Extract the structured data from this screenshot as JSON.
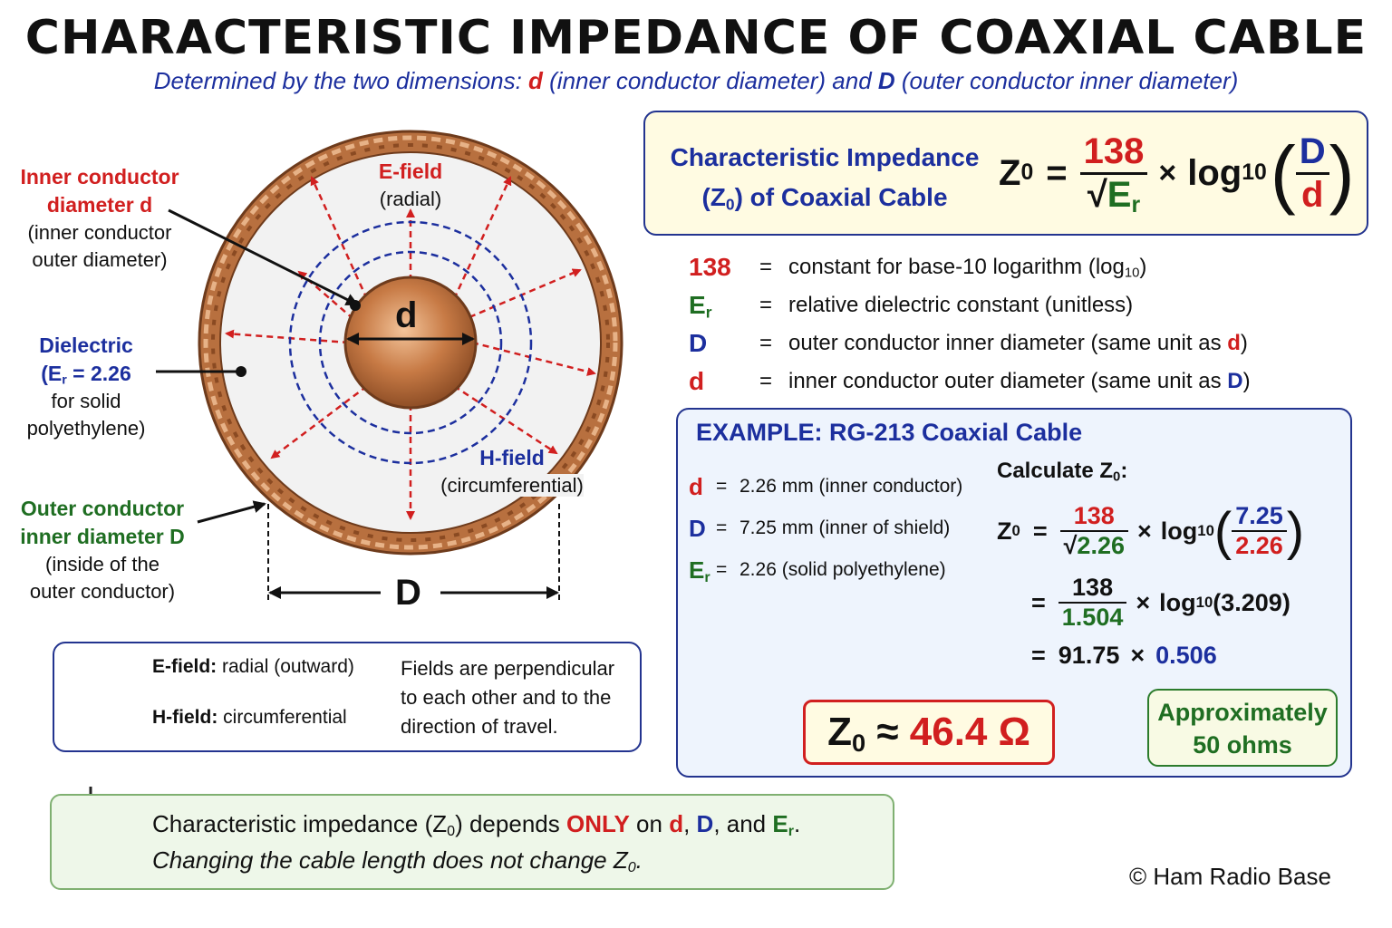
{
  "title": "CHARACTERISTIC IMPEDANCE OF COAXIAL CABLE",
  "subtitle": {
    "p1": "Determined by the two dimensions: ",
    "d": "d",
    "p2": " (inner conductor diameter) and ",
    "D": "D",
    "p3": " (outer conductor inner diameter)"
  },
  "diagram": {
    "inner_label_title_1": "Inner conductor",
    "inner_label_title_2": "diameter d",
    "inner_label_desc_1": "(inner conductor",
    "inner_label_desc_2": "outer diameter)",
    "dielectric_title": "Dielectric",
    "dielectric_er_pre": "(E",
    "dielectric_er_sub": "r",
    "dielectric_er_post": " = 2.26",
    "dielectric_desc_1": "for solid",
    "dielectric_desc_2": "polyethylene)",
    "outer_label_title_1": "Outer conductor",
    "outer_label_title_2": "inner diameter D",
    "outer_label_desc_1": "(inside of the",
    "outer_label_desc_2": "outer conductor)",
    "efield_title": "E-field",
    "efield_desc": "(radial)",
    "hfield_title": "H-field",
    "hfield_desc": "(circumferential)",
    "d_mark": "d",
    "D_mark": "D"
  },
  "formula": {
    "label_1": "Characteristic Impedance",
    "label_2a": "(Z",
    "label_2sub": "0",
    "label_2b": ") of Coaxial Cable",
    "z": "Z",
    "z_sub": "0",
    "equals": "=",
    "numerator": "138",
    "sqrt": "√",
    "er": "E",
    "er_sub": "r",
    "times": "×",
    "log": "log",
    "log_sub": "10",
    "frac_num": "D",
    "frac_den": "d"
  },
  "definitions": [
    {
      "sym": "138",
      "sub": "",
      "eq": "=",
      "text": "constant for base-10 logarithm (log",
      "text_sub": "10",
      "text_post": ")",
      "tail": "",
      "tail_color": ""
    },
    {
      "sym": "E",
      "sub": "r",
      "eq": "=",
      "text": "relative dielectric constant (unitless)",
      "text_sub": "",
      "text_post": "",
      "tail": "",
      "tail_color": ""
    },
    {
      "sym": "D",
      "sub": "",
      "eq": "=",
      "text": "outer conductor inner diameter (same unit as ",
      "text_sub": "",
      "text_post": ")",
      "tail": "d",
      "tail_color": "#d11f1f"
    },
    {
      "sym": "d",
      "sub": "",
      "eq": "=",
      "text": "inner conductor outer diameter (same unit as ",
      "text_sub": "",
      "text_post": ")",
      "tail": "D",
      "tail_color": "#1c2f9e"
    }
  ],
  "example": {
    "title": "EXAMPLE: RG-213 Coaxial Cable",
    "givens": [
      {
        "sym": "d",
        "sub": "",
        "eq": "=",
        "value": "2.26 mm",
        "note": "(inner conductor)"
      },
      {
        "sym": "D",
        "sub": "",
        "eq": "=",
        "value": "7.25 mm",
        "note": "(inner of shield)"
      },
      {
        "sym": "E",
        "sub": "r",
        "eq": "=",
        "value": "2.26",
        "note": "(solid polyethylene)"
      }
    ],
    "calc_label": "Calculate Z",
    "calc_label_sub": "0",
    "calc_label_post": ":",
    "step1": {
      "z": "Z",
      "z_sub": "0",
      "eq": "=",
      "num": "138",
      "sqrt": "√",
      "den": "2.26",
      "times": "×",
      "log": "log",
      "log_sub": "10",
      "fnum": "7.25",
      "fden": "2.26"
    },
    "step2": {
      "eq": "=",
      "num": "138",
      "den": "1.504",
      "times": "×",
      "log": "log",
      "log_sub": "10",
      "arg": "(3.209)"
    },
    "step3": {
      "eq": "=",
      "a": "91.75",
      "times": "×",
      "b": "0.506"
    },
    "result_z": "Z",
    "result_sub": "0",
    "result_approx": " ≈ ",
    "result_value": "46.4 Ω",
    "approx_1": "Approximately",
    "approx_2": "50 ohms"
  },
  "legend": {
    "efield_label": "E-field:",
    "efield_desc": " radial (outward)",
    "hfield_label": "H-field:",
    "hfield_desc": " circumferential",
    "note_1": "Fields are perpendicular",
    "note_2": "to each other and to the",
    "note_3": "direction of travel."
  },
  "tip": {
    "p1": "Characteristic impedance (Z",
    "p1_sub": "0",
    "p2": ") depends ",
    "only": "ONLY",
    "p3": " on ",
    "d": "d",
    "c1": ", ",
    "D": "D",
    "c2": ", and ",
    "er": "E",
    "er_sub": "r",
    "end": ".",
    "line2": "Changing the cable length does not change Z",
    "line2_sub": "0",
    "line2_end": "."
  },
  "copyright": "© Ham Radio Base",
  "colors": {
    "red": "#d11f1f",
    "blue": "#1c2f9e",
    "green": "#1f6e22",
    "copper": "#c77a45",
    "panel_yellow": "#fffbe2",
    "panel_blue": "#eef4fd",
    "panel_green": "#eef7e9"
  },
  "icons": [
    "lightbulb-icon",
    "arrow-right-icon"
  ]
}
